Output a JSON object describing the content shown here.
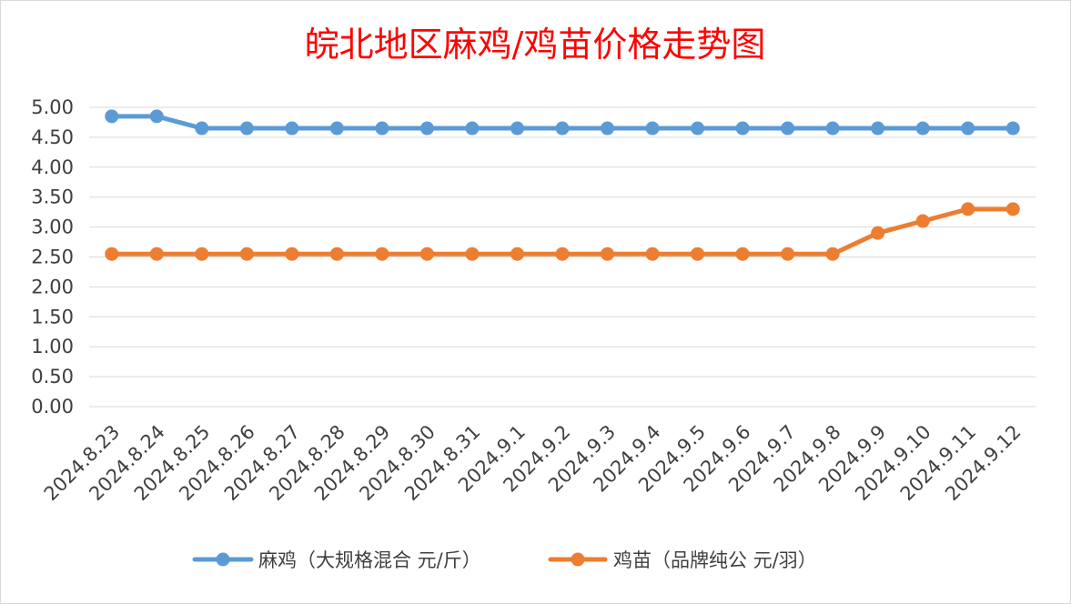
{
  "chart_data": {
    "type": "line",
    "title": "皖北地区麻鸡/鸡苗价格走势图",
    "xlabel": "",
    "ylabel": "",
    "categories": [
      "2024.8.23",
      "2024.8.24",
      "2024.8.25",
      "2024.8.26",
      "2024.8.27",
      "2024.8.28",
      "2024.8.29",
      "2024.8.30",
      "2024.8.31",
      "2024.9.1",
      "2024.9.2",
      "2024.9.3",
      "2024.9.4",
      "2024.9.5",
      "2024.9.6",
      "2024.9.7",
      "2024.9.8",
      "2024.9.9",
      "2024.9.10",
      "2024.9.11",
      "2024.9.12"
    ],
    "y_ticks": [
      "0.00",
      "0.50",
      "1.00",
      "1.50",
      "2.00",
      "2.50",
      "3.00",
      "3.50",
      "4.00",
      "4.50",
      "5.00"
    ],
    "ylim": [
      0,
      5
    ],
    "grid": true,
    "legend_position": "bottom",
    "series": [
      {
        "name": "麻鸡（大规格混合 元/斤）",
        "color": "#5b9bd5",
        "values": [
          4.85,
          4.85,
          4.65,
          4.65,
          4.65,
          4.65,
          4.65,
          4.65,
          4.65,
          4.65,
          4.65,
          4.65,
          4.65,
          4.65,
          4.65,
          4.65,
          4.65,
          4.65,
          4.65,
          4.65,
          4.65
        ]
      },
      {
        "name": "鸡苗（品牌纯公 元/羽）",
        "color": "#ed7d31",
        "values": [
          2.55,
          2.55,
          2.55,
          2.55,
          2.55,
          2.55,
          2.55,
          2.55,
          2.55,
          2.55,
          2.55,
          2.55,
          2.55,
          2.55,
          2.55,
          2.55,
          2.55,
          2.9,
          3.1,
          3.3,
          3.3
        ]
      }
    ]
  }
}
